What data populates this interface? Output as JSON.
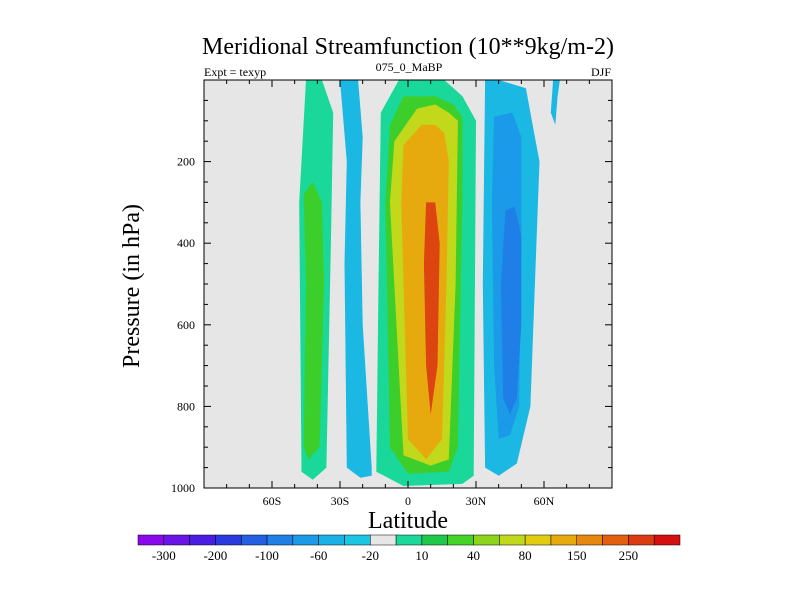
{
  "chart_data": {
    "type": "contour",
    "title": "Meridional Streamfunction (10**9kg/m-2)",
    "subtitle_left": "Expt = texyp",
    "subtitle_center": "075_0_MaBP",
    "subtitle_right": "DJF",
    "xlabel": "Latitude",
    "ylabel": "Pressure (in hPa)",
    "xlim": [
      -90,
      90
    ],
    "ylim": [
      1000,
      0
    ],
    "x_ticks": [
      {
        "value": -60,
        "label": "60S"
      },
      {
        "value": -30,
        "label": "30S"
      },
      {
        "value": 0,
        "label": "0"
      },
      {
        "value": 30,
        "label": "30N"
      },
      {
        "value": 60,
        "label": "60N"
      }
    ],
    "y_ticks": [
      {
        "value": 200,
        "label": "200"
      },
      {
        "value": 400,
        "label": "400"
      },
      {
        "value": 600,
        "label": "600"
      },
      {
        "value": 800,
        "label": "800"
      },
      {
        "value": 1000,
        "label": "1000"
      }
    ],
    "colorbar": {
      "colors": [
        "#8a08ec",
        "#6a14e6",
        "#4a1de2",
        "#2a3ade",
        "#245ee2",
        "#1f7fe6",
        "#1a9ae8",
        "#1ab2e6",
        "#1ac6e2",
        "#e6e6e6",
        "#1ad89a",
        "#1ec84a",
        "#44d428",
        "#8ed41a",
        "#c2d81a",
        "#e2cc10",
        "#e6aa0e",
        "#e6880e",
        "#e2600e",
        "#dc3a10",
        "#d41010"
      ],
      "tick_labels": [
        "-300",
        "-200",
        "-100",
        "-60",
        "-20",
        "10",
        "40",
        "80",
        "150",
        "250"
      ]
    },
    "fields": [
      {
        "level": 10,
        "x": [
          -45,
          -38,
          -33,
          -34,
          -36,
          -42,
          -47,
          -48,
          -45
        ],
        "y": [
          0,
          0,
          80,
          400,
          950,
          980,
          960,
          300,
          0
        ]
      },
      {
        "level": 40,
        "x": [
          -46,
          -42,
          -38,
          -37,
          -39,
          -44,
          -46,
          -45,
          -46
        ],
        "y": [
          280,
          250,
          300,
          500,
          900,
          930,
          900,
          500,
          280
        ]
      },
      {
        "level": -20,
        "x": [
          -30,
          -22,
          -20,
          -21,
          -20,
          -16,
          -16,
          -21,
          -27,
          -28,
          -27,
          -30
        ],
        "y": [
          0,
          0,
          140,
          300,
          600,
          950,
          970,
          975,
          950,
          450,
          200,
          0
        ]
      },
      {
        "level": 10,
        "x": [
          -12,
          -4,
          16,
          24,
          30,
          29,
          24,
          -2,
          -14,
          -13,
          -12
        ],
        "y": [
          80,
          0,
          0,
          40,
          100,
          970,
          990,
          995,
          960,
          500,
          80
        ]
      },
      {
        "level": 40,
        "x": [
          -8,
          -2,
          12,
          20,
          24,
          24,
          22,
          18,
          0,
          -8,
          -10,
          -8
        ],
        "y": [
          110,
          40,
          40,
          60,
          90,
          300,
          900,
          960,
          965,
          900,
          300,
          110
        ]
      },
      {
        "level": 80,
        "x": [
          -6,
          4,
          12,
          18,
          22,
          21,
          18,
          10,
          -2,
          -8,
          -6
        ],
        "y": [
          150,
          70,
          60,
          80,
          100,
          500,
          930,
          945,
          920,
          300,
          150
        ]
      },
      {
        "level": 150,
        "x": [
          -2,
          6,
          12,
          16,
          18,
          17,
          15,
          8,
          0,
          -3,
          -2
        ],
        "y": [
          160,
          110,
          110,
          130,
          200,
          500,
          880,
          930,
          880,
          300,
          160
        ]
      },
      {
        "level": 150,
        "x": [
          4,
          8,
          14,
          16,
          15,
          12,
          6,
          3,
          4
        ],
        "y": [
          170,
          150,
          150,
          200,
          500,
          840,
          880,
          600,
          170
        ]
      },
      {
        "level": 250,
        "x": [
          8,
          12,
          14,
          13,
          10,
          8,
          7,
          8
        ],
        "y": [
          300,
          300,
          400,
          700,
          820,
          700,
          450,
          300
        ]
      },
      {
        "level": -20,
        "x": [
          34,
          40,
          52,
          56,
          58,
          56,
          54,
          48,
          40,
          34,
          33,
          34
        ],
        "y": [
          0,
          0,
          20,
          140,
          200,
          500,
          800,
          940,
          970,
          950,
          500,
          0
        ]
      },
      {
        "level": -60,
        "x": [
          38,
          46,
          50,
          50,
          49,
          45,
          40,
          38,
          37,
          38
        ],
        "y": [
          90,
          80,
          140,
          400,
          800,
          870,
          880,
          700,
          300,
          90
        ]
      },
      {
        "level": -100,
        "x": [
          43,
          47,
          50,
          50,
          48,
          45,
          42,
          41,
          43
        ],
        "y": [
          320,
          310,
          380,
          600,
          780,
          820,
          780,
          500,
          320
        ]
      },
      {
        "level": -20,
        "x": [
          64,
          67,
          66,
          65,
          63,
          64
        ],
        "y": [
          0,
          0,
          40,
          110,
          80,
          0
        ]
      }
    ]
  }
}
